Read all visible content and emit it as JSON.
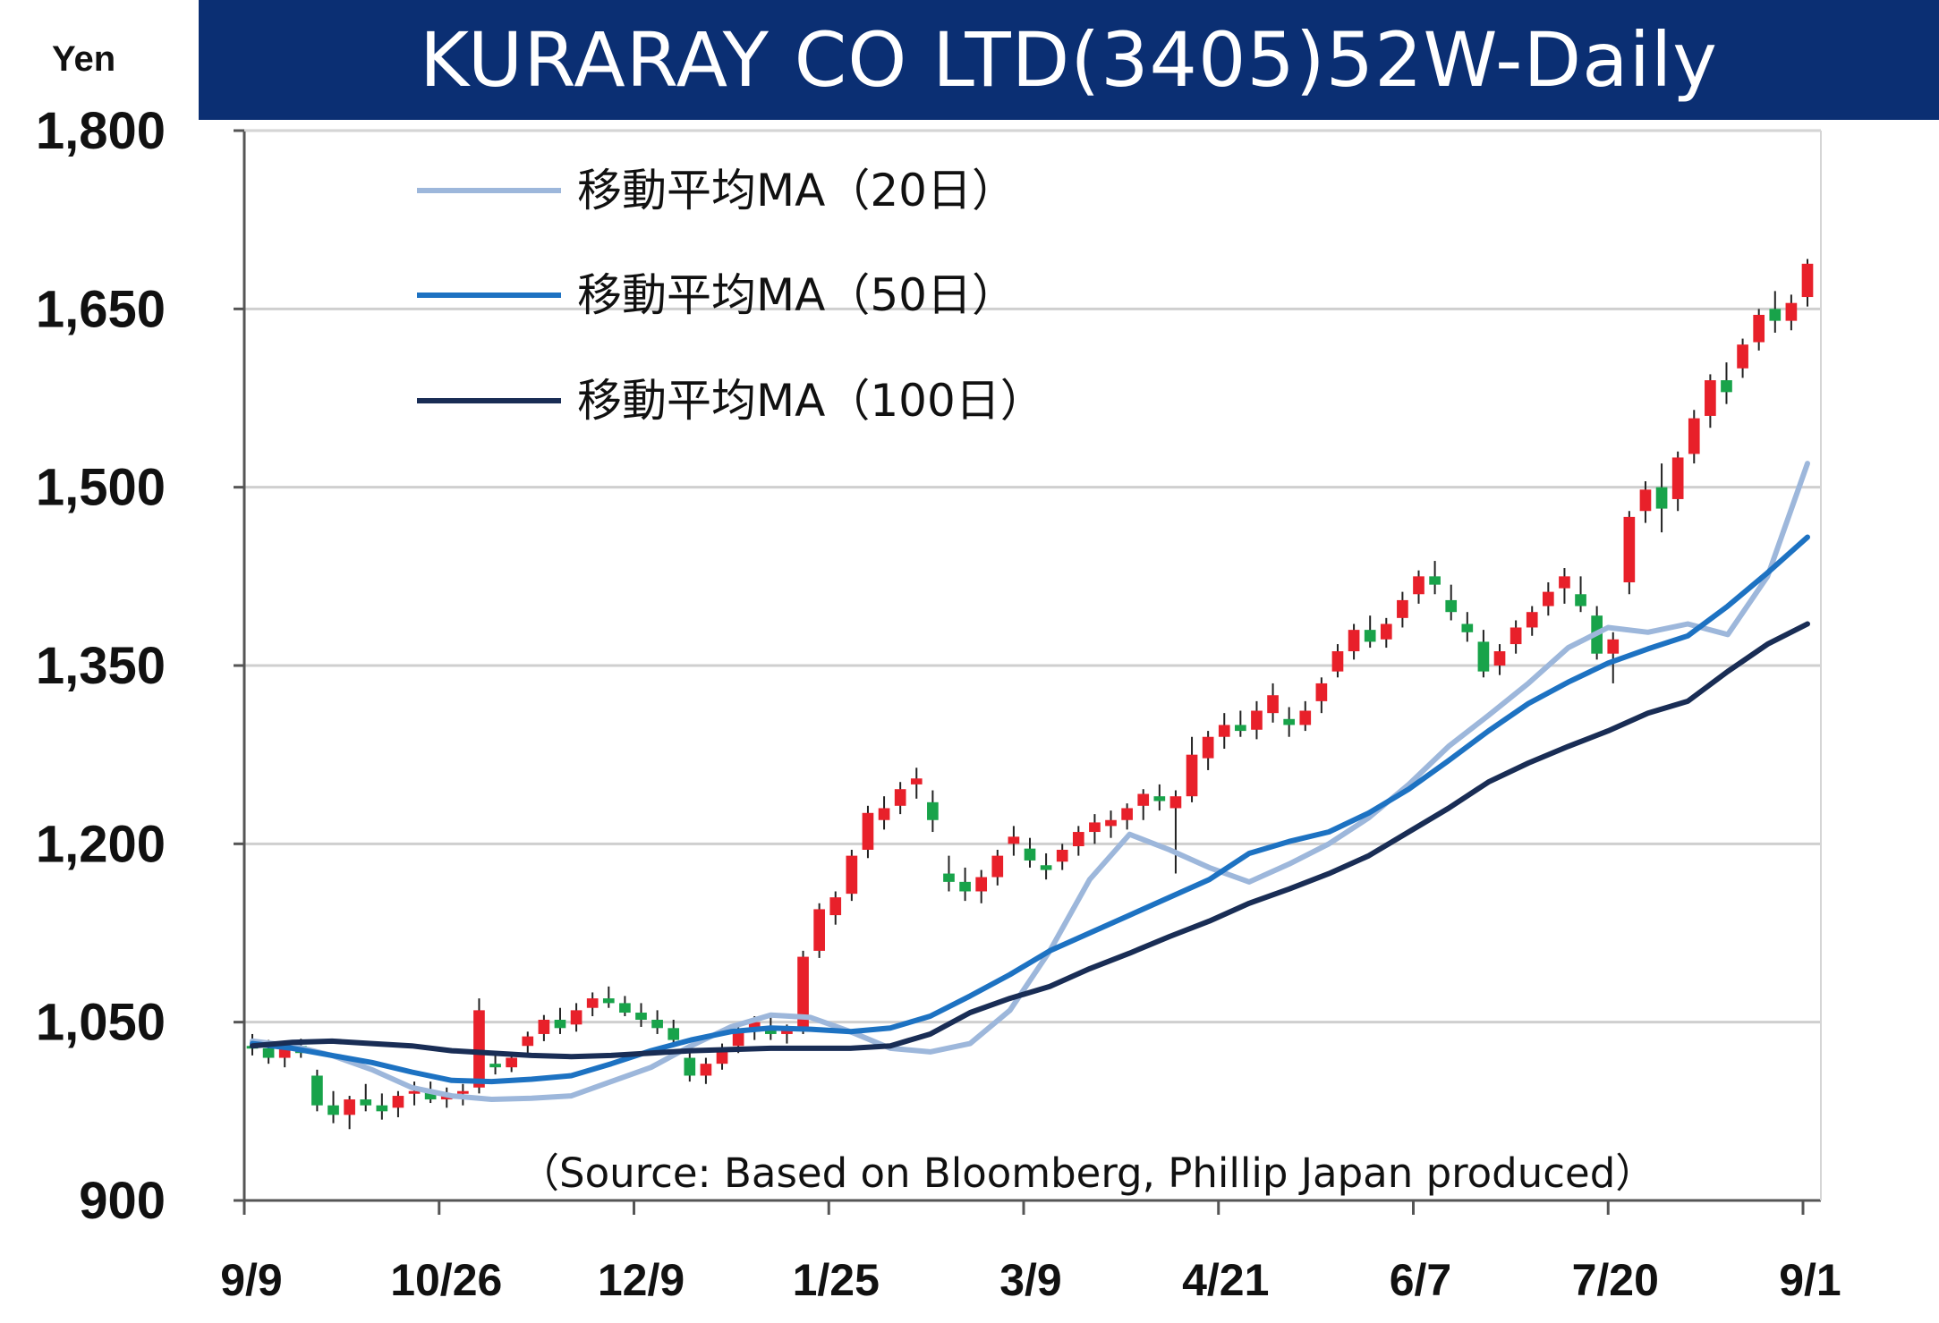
{
  "header": {
    "title": "KURARAY CO LTD(3405)52W-Daily",
    "unit": "Yen",
    "title_bg": "#0b2f73"
  },
  "source_note": "（Source: Based on Bloomberg, Phillip Japan produced）",
  "chart_data": {
    "type": "line",
    "title": "KURARAY CO LTD(3405)52W-Daily",
    "ylabel": "Yen",
    "ylim": [
      900,
      1800
    ],
    "yticks": [
      900,
      1050,
      1200,
      1350,
      1500,
      1650,
      1800
    ],
    "ytick_labels": [
      "900",
      "1,050",
      "1,200",
      "1,350",
      "1,500",
      "1,650",
      "1,800"
    ],
    "xticks": [
      "9/9",
      "10/26",
      "12/9",
      "1/25",
      "3/9",
      "4/21",
      "6/7",
      "7/20",
      "9/1"
    ],
    "grid": true,
    "legend_position": "top-left",
    "candle_colors": {
      "up": "#e8202a",
      "down": "#18a34a"
    },
    "series": [
      {
        "name": "移動平均MA（20日）",
        "color": "#9db7db",
        "values": [
          1034,
          1030,
          1022,
          1010,
          995,
          988,
          985,
          986,
          988,
          1000,
          1012,
          1030,
          1046,
          1056,
          1054,
          1042,
          1028,
          1025,
          1032,
          1060,
          1110,
          1170,
          1208,
          1195,
          1180,
          1168,
          1183,
          1200,
          1222,
          1250,
          1282,
          1308,
          1335,
          1365,
          1382,
          1378,
          1385,
          1376,
          1425,
          1520
        ]
      },
      {
        "name": "移動平均MA（50日）",
        "color": "#1d72c2",
        "values": [
          1032,
          1028,
          1022,
          1016,
          1008,
          1001,
          1000,
          1002,
          1005,
          1015,
          1026,
          1035,
          1042,
          1045,
          1044,
          1042,
          1045,
          1055,
          1072,
          1090,
          1110,
          1125,
          1140,
          1155,
          1170,
          1192,
          1202,
          1210,
          1226,
          1246,
          1270,
          1295,
          1318,
          1336,
          1352,
          1364,
          1375,
          1400,
          1428,
          1458
        ]
      },
      {
        "name": "移動平均MA（100日）",
        "color": "#192d55",
        "values": [
          1030,
          1033,
          1034,
          1032,
          1030,
          1026,
          1024,
          1022,
          1021,
          1022,
          1024,
          1026,
          1027,
          1028,
          1028,
          1028,
          1030,
          1040,
          1058,
          1070,
          1080,
          1095,
          1108,
          1122,
          1135,
          1150,
          1162,
          1175,
          1190,
          1210,
          1230,
          1252,
          1268,
          1282,
          1295,
          1310,
          1320,
          1345,
          1368,
          1385
        ]
      }
    ],
    "ohlc": [
      [
        1030,
        1040,
        1022,
        1028
      ],
      [
        1028,
        1035,
        1015,
        1020
      ],
      [
        1020,
        1032,
        1012,
        1030
      ],
      [
        1030,
        1036,
        1020,
        1024
      ],
      [
        1005,
        1010,
        975,
        980
      ],
      [
        980,
        992,
        965,
        972
      ],
      [
        972,
        988,
        960,
        985
      ],
      [
        985,
        998,
        975,
        980
      ],
      [
        980,
        990,
        968,
        975
      ],
      [
        978,
        992,
        970,
        988
      ],
      [
        990,
        1000,
        980,
        992
      ],
      [
        992,
        1000,
        982,
        985
      ],
      [
        985,
        995,
        978,
        990
      ],
      [
        990,
        998,
        980,
        992
      ],
      [
        995,
        1070,
        990,
        1060
      ],
      [
        1015,
        1024,
        1006,
        1012
      ],
      [
        1012,
        1025,
        1008,
        1020
      ],
      [
        1030,
        1042,
        1024,
        1038
      ],
      [
        1040,
        1056,
        1034,
        1052
      ],
      [
        1052,
        1062,
        1040,
        1045
      ],
      [
        1048,
        1066,
        1042,
        1060
      ],
      [
        1062,
        1075,
        1055,
        1070
      ],
      [
        1070,
        1080,
        1062,
        1066
      ],
      [
        1066,
        1072,
        1055,
        1058
      ],
      [
        1058,
        1066,
        1046,
        1052
      ],
      [
        1052,
        1060,
        1040,
        1045
      ],
      [
        1045,
        1052,
        1030,
        1035
      ],
      [
        1020,
        1028,
        1000,
        1005
      ],
      [
        1005,
        1020,
        998,
        1015
      ],
      [
        1015,
        1032,
        1010,
        1028
      ],
      [
        1030,
        1046,
        1024,
        1042
      ],
      [
        1042,
        1055,
        1035,
        1050
      ],
      [
        1045,
        1055,
        1035,
        1040
      ],
      [
        1040,
        1048,
        1032,
        1044
      ],
      [
        1045,
        1110,
        1040,
        1105
      ],
      [
        1110,
        1150,
        1104,
        1145
      ],
      [
        1140,
        1160,
        1132,
        1155
      ],
      [
        1158,
        1195,
        1152,
        1190
      ],
      [
        1195,
        1232,
        1188,
        1226
      ],
      [
        1220,
        1240,
        1212,
        1230
      ],
      [
        1232,
        1252,
        1225,
        1246
      ],
      [
        1250,
        1264,
        1238,
        1255
      ],
      [
        1235,
        1245,
        1210,
        1220
      ],
      [
        1175,
        1190,
        1160,
        1168
      ],
      [
        1168,
        1180,
        1152,
        1160
      ],
      [
        1160,
        1178,
        1150,
        1172
      ],
      [
        1172,
        1195,
        1165,
        1190
      ],
      [
        1200,
        1215,
        1190,
        1206
      ],
      [
        1196,
        1205,
        1180,
        1186
      ],
      [
        1182,
        1192,
        1170,
        1178
      ],
      [
        1185,
        1200,
        1178,
        1195
      ],
      [
        1198,
        1215,
        1190,
        1210
      ],
      [
        1210,
        1225,
        1200,
        1218
      ],
      [
        1215,
        1228,
        1205,
        1220
      ],
      [
        1220,
        1234,
        1212,
        1230
      ],
      [
        1232,
        1246,
        1220,
        1242
      ],
      [
        1240,
        1250,
        1228,
        1236
      ],
      [
        1230,
        1245,
        1175,
        1240
      ],
      [
        1240,
        1290,
        1235,
        1275
      ],
      [
        1272,
        1295,
        1262,
        1290
      ],
      [
        1290,
        1310,
        1280,
        1300
      ],
      [
        1300,
        1312,
        1290,
        1295
      ],
      [
        1296,
        1320,
        1288,
        1312
      ],
      [
        1310,
        1335,
        1302,
        1325
      ],
      [
        1305,
        1315,
        1290,
        1300
      ],
      [
        1300,
        1320,
        1295,
        1312
      ],
      [
        1320,
        1340,
        1310,
        1335
      ],
      [
        1345,
        1368,
        1340,
        1362
      ],
      [
        1362,
        1385,
        1355,
        1380
      ],
      [
        1380,
        1392,
        1365,
        1370
      ],
      [
        1372,
        1390,
        1365,
        1385
      ],
      [
        1390,
        1412,
        1382,
        1405
      ],
      [
        1410,
        1430,
        1402,
        1425
      ],
      [
        1425,
        1438,
        1410,
        1418
      ],
      [
        1405,
        1418,
        1388,
        1395
      ],
      [
        1385,
        1395,
        1370,
        1378
      ],
      [
        1370,
        1380,
        1340,
        1345
      ],
      [
        1350,
        1368,
        1342,
        1362
      ],
      [
        1368,
        1388,
        1360,
        1382
      ],
      [
        1382,
        1400,
        1375,
        1395
      ],
      [
        1400,
        1420,
        1392,
        1412
      ],
      [
        1415,
        1432,
        1402,
        1425
      ],
      [
        1410,
        1425,
        1395,
        1400
      ],
      [
        1392,
        1400,
        1355,
        1360
      ],
      [
        1360,
        1378,
        1335,
        1372
      ],
      [
        1420,
        1480,
        1410,
        1475
      ],
      [
        1480,
        1505,
        1470,
        1498
      ],
      [
        1500,
        1520,
        1462,
        1482
      ],
      [
        1490,
        1530,
        1480,
        1525
      ],
      [
        1528,
        1565,
        1520,
        1558
      ],
      [
        1560,
        1595,
        1550,
        1590
      ],
      [
        1590,
        1605,
        1570,
        1580
      ],
      [
        1600,
        1625,
        1592,
        1620
      ],
      [
        1622,
        1650,
        1615,
        1645
      ],
      [
        1650,
        1665,
        1630,
        1640
      ],
      [
        1640,
        1662,
        1632,
        1655
      ],
      [
        1660,
        1692,
        1652,
        1688
      ]
    ]
  }
}
